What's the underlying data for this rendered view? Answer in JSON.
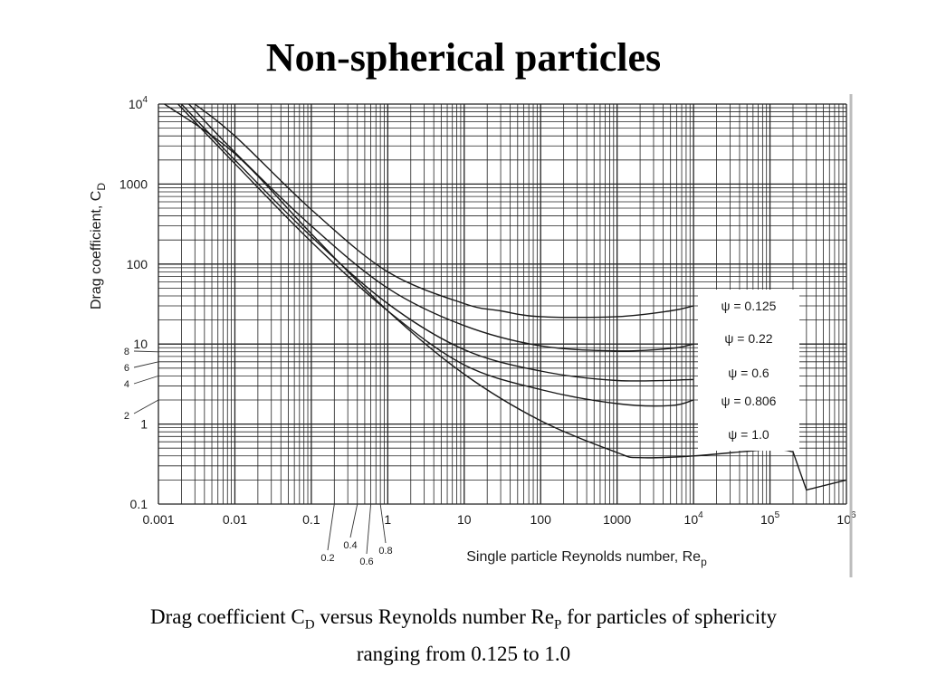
{
  "slide": {
    "title": "Non-spherical particles",
    "caption": {
      "part1": "Drag coefficient C",
      "sub1": "D",
      "part2": " versus Reynolds number Re",
      "sub2": "P",
      "part3": " for particles of sphericity",
      "line2": "ranging from 0.125 to 1.0"
    }
  },
  "chart_data": {
    "type": "line",
    "xscale": "log",
    "yscale": "log",
    "xlim": [
      0.001,
      1000000
    ],
    "ylim": [
      0.1,
      10000
    ],
    "grid": true,
    "xlabel": "Single particle Reynolds number, Re",
    "xlabel_sub": "p",
    "ylabel": "Drag coefficient, C",
    "ylabel_sub": "D",
    "x_ticks": [
      {
        "value": 0.001,
        "label": "0.001"
      },
      {
        "value": 0.01,
        "label": "0.01"
      },
      {
        "value": 0.1,
        "label": "0.1"
      },
      {
        "value": 1,
        "label": "1"
      },
      {
        "value": 10,
        "label": "10"
      },
      {
        "value": 100,
        "label": "100"
      },
      {
        "value": 1000,
        "label": "1000"
      },
      {
        "value": 10000,
        "label": "10",
        "exp": "4"
      },
      {
        "value": 100000,
        "label": "10",
        "exp": "5"
      },
      {
        "value": 1000000,
        "label": "10",
        "exp": "6"
      }
    ],
    "y_ticks": [
      {
        "value": 0.1,
        "label": "0.1"
      },
      {
        "value": 1,
        "label": "1"
      },
      {
        "value": 10,
        "label": "10"
      },
      {
        "value": 100,
        "label": "100"
      },
      {
        "value": 1000,
        "label": "1000"
      },
      {
        "value": 10000,
        "label": "10",
        "exp": "4"
      }
    ],
    "y_minor_callouts": [
      {
        "value": 2,
        "label": "2"
      },
      {
        "value": 4,
        "label": "4"
      },
      {
        "value": 6,
        "label": "6"
      },
      {
        "value": 8,
        "label": "8"
      }
    ],
    "x_minor_callouts": [
      {
        "value": 0.2,
        "label": "0.2"
      },
      {
        "value": 0.4,
        "label": "0.4"
      },
      {
        "value": 0.6,
        "label": "0.6"
      },
      {
        "value": 0.8,
        "label": "0.8"
      }
    ],
    "series": [
      {
        "name": "ψ = 0.125",
        "x": [
          0.003,
          0.01,
          0.1,
          1,
          10,
          30,
          100,
          1000,
          5000,
          10000
        ],
        "y": [
          10000,
          4000,
          480,
          80,
          32,
          26,
          22,
          22,
          26,
          30
        ]
      },
      {
        "name": "ψ = 0.22",
        "x": [
          0.0025,
          0.01,
          0.1,
          1,
          10,
          100,
          1000,
          5000,
          10000
        ],
        "y": [
          10000,
          2500,
          300,
          50,
          17,
          9.5,
          8.2,
          8.8,
          10
        ]
      },
      {
        "name": "ψ = 0.6",
        "x": [
          0.002,
          0.01,
          0.1,
          1,
          10,
          100,
          1000,
          10000
        ],
        "y": [
          10000,
          2000,
          220,
          32,
          8.5,
          4.6,
          3.5,
          3.6
        ]
      },
      {
        "name": "ψ = 0.806",
        "x": [
          0.0018,
          0.01,
          0.1,
          1,
          10,
          100,
          1000,
          5000,
          10000
        ],
        "y": [
          10000,
          1800,
          190,
          26,
          5.5,
          2.7,
          1.8,
          1.7,
          2
        ]
      },
      {
        "name": "ψ = 1.0",
        "x": [
          0.0012,
          0.01,
          0.1,
          1,
          10,
          100,
          1000,
          2000,
          10000,
          100000,
          200000,
          300000,
          1000000
        ],
        "y": [
          10000,
          2400,
          240,
          26,
          4.2,
          1.1,
          0.44,
          0.38,
          0.4,
          0.48,
          0.45,
          0.15,
          0.2
        ]
      }
    ]
  }
}
